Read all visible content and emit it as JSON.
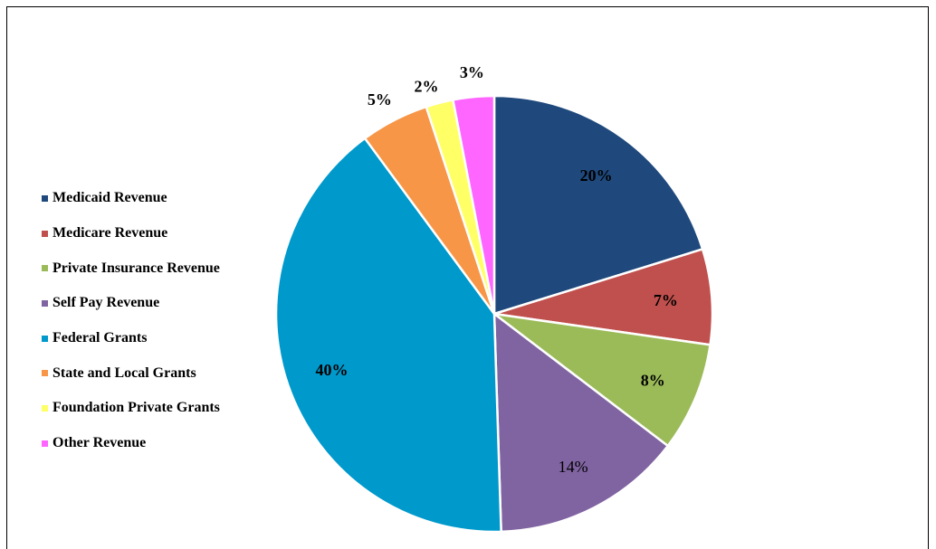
{
  "chart_data": {
    "type": "pie",
    "title": "",
    "start_angle_deg": 0,
    "direction": "clockwise",
    "legend_position": "left",
    "slices": [
      {
        "name": "Medicaid Revenue",
        "value": 20,
        "label": "20%",
        "color": "#1F497D",
        "bold": true
      },
      {
        "name": "Medicare Revenue",
        "value": 7,
        "label": "7%",
        "color": "#C0504D",
        "bold": true
      },
      {
        "name": "Private Insurance Revenue",
        "value": 8,
        "label": "8%",
        "color": "#9BBB59",
        "bold": true
      },
      {
        "name": "Self Pay Revenue",
        "value": 14,
        "label": "14%",
        "color": "#8064A2",
        "bold": false
      },
      {
        "name": "Federal Grants",
        "value": 40,
        "label": "40%",
        "color": "#0099CC",
        "bold": true
      },
      {
        "name": "State and Local Grants",
        "value": 5,
        "label": "5%",
        "color": "#F79646",
        "bold": true
      },
      {
        "name": "Foundation Private Grants",
        "value": 2,
        "label": "2%",
        "color": "#FFFF66",
        "bold": true
      },
      {
        "name": "Other Revenue",
        "value": 3,
        "label": "3%",
        "color": "#FF66FF",
        "bold": true
      }
    ]
  }
}
